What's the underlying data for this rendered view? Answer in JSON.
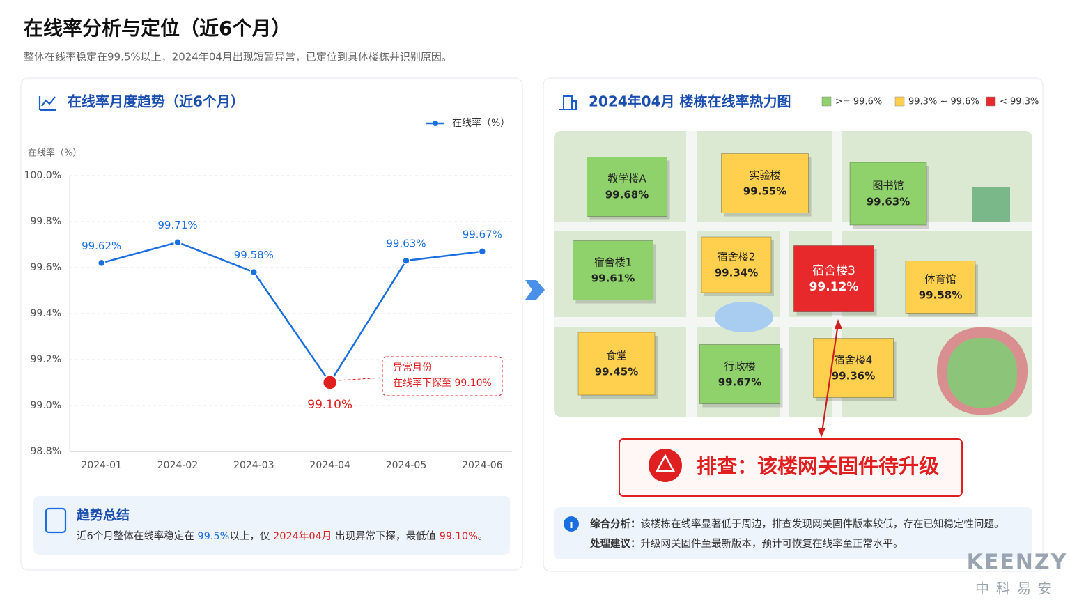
{
  "header": {
    "title": "在线率分析与定位（近6个月）",
    "subtitle": "整体在线率稳定在99.5%以上，2024年04月出现短暂异常，已定位到具体楼栋并识别原因。"
  },
  "chart_data": {
    "type": "line",
    "title": "在线率月度趋势（近6个月）",
    "y_label": "在线率（%）",
    "categories": [
      "2024-01",
      "2024-02",
      "2024-03",
      "2024-04",
      "2024-05",
      "2024-06"
    ],
    "series": [
      {
        "name": "在线率（%）",
        "color": "#1a6fe0",
        "values": [
          99.62,
          99.71,
          99.58,
          99.1,
          99.63,
          99.67
        ],
        "value_labels": [
          "99.62%",
          "99.71%",
          "99.58%",
          "99.10%",
          "99.63%",
          "99.67%"
        ]
      }
    ],
    "ylim": [
      98.8,
      100.0
    ],
    "yticks": [
      {
        "value": 98.8,
        "label": "98.8%"
      },
      {
        "value": 99.0,
        "label": "99.0%"
      },
      {
        "value": 99.2,
        "label": "99.2%"
      },
      {
        "value": 99.4,
        "label": "99.4%"
      },
      {
        "value": 99.6,
        "label": "99.6%"
      },
      {
        "value": 99.8,
        "label": "99.8%"
      },
      {
        "value": 100.0,
        "label": "100.0%"
      }
    ],
    "grid": true,
    "legend": "top-right",
    "anomaly": {
      "index": 3,
      "color": "#e02020",
      "lines": [
        "异常月份",
        "在线率下探至 99.10%"
      ]
    }
  },
  "summary": {
    "title": "趋势总结",
    "parts": [
      {
        "text": "近6个月整体在线率稳定在 ",
        "color": "#333333"
      },
      {
        "text": "99.5%",
        "color": "#1a6fe0"
      },
      {
        "text": "以上，仅 ",
        "color": "#333333"
      },
      {
        "text": "2024年04月",
        "color": "#e02020"
      },
      {
        "text": " 出现异常下探，最低值 ",
        "color": "#333333"
      },
      {
        "text": "99.10%",
        "color": "#e02020"
      },
      {
        "text": "。",
        "color": "#333333"
      }
    ]
  },
  "heatmap": {
    "title": "2024年04月 楼栋在线率热力图",
    "legend": [
      {
        "label": ">= 99.6%",
        "color": "#8fd16a"
      },
      {
        "label": "99.3% ~ 99.6%",
        "color": "#ffd04d"
      },
      {
        "label": "< 99.3%",
        "color": "#e8292b"
      }
    ],
    "buildings": [
      {
        "name": "教学楼A",
        "value": "99.68%",
        "level": 0
      },
      {
        "name": "实验楼",
        "value": "99.55%",
        "level": 1
      },
      {
        "name": "图书馆",
        "value": "99.63%",
        "level": 0
      },
      {
        "name": "宿舍楼1",
        "value": "99.61%",
        "level": 0
      },
      {
        "name": "宿舍楼2",
        "value": "99.34%",
        "level": 1
      },
      {
        "name": "宿舍楼3",
        "value": "99.12%",
        "level": 2
      },
      {
        "name": "体育馆",
        "value": "99.58%",
        "level": 1
      },
      {
        "name": "食堂",
        "value": "99.45%",
        "level": 1
      },
      {
        "name": "行政楼",
        "value": "99.67%",
        "level": 0
      },
      {
        "name": "宿舍楼4",
        "value": "99.36%",
        "level": 1
      }
    ]
  },
  "callout": "排查：该楼网关固件待升级",
  "analysis": {
    "rows": [
      {
        "label": "综合分析：",
        "text": "该楼栋在线率显著低于周边，排查发现网关固件版本较低，存在已知稳定性问题。"
      },
      {
        "label": "处理建议：",
        "text": "升级网关固件至最新版本，预计可恢复在线率至正常水平。"
      }
    ]
  },
  "brand": {
    "name": "KEENZY",
    "sub": "中科易安"
  }
}
